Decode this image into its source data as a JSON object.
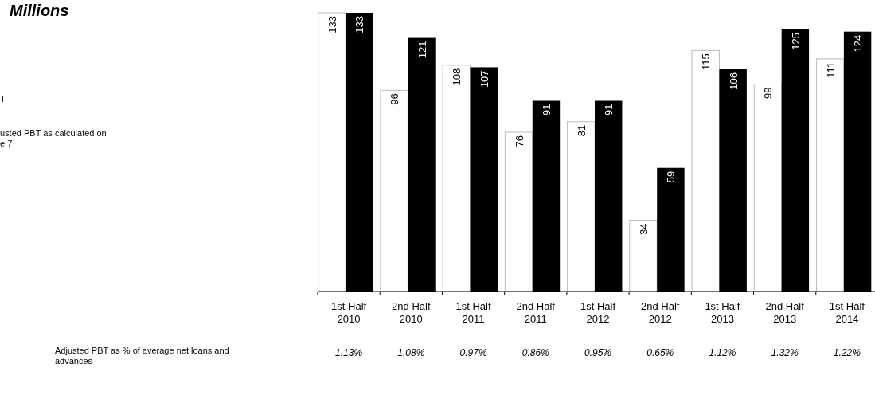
{
  "chart_data": {
    "type": "bar",
    "title": "Millions",
    "categories": [
      "1st Half 2010",
      "2nd Half 2010",
      "1st Half 2011",
      "2nd Half 2011",
      "1st Half 2012",
      "2nd Half 2012",
      "1st Half 2013",
      "2nd Half 2013",
      "1st Half 2014"
    ],
    "series": [
      {
        "color": "#ffffff",
        "values": [
          133,
          96,
          108,
          76,
          81,
          34,
          115,
          99,
          111
        ]
      },
      {
        "color": "#000000",
        "values": [
          133,
          121,
          107,
          91,
          91,
          59,
          106,
          125,
          124
        ]
      }
    ],
    "data_labels": true,
    "annotations": [
      "T",
      "usted PBT as calculated on\ne 7",
      "Adjusted PBT as % of average net loans and\nadvances",
      "1.13%",
      "1.08%",
      "0.97%",
      "0.86%",
      "0.95%",
      "0.65%",
      "1.12%",
      "1.32%",
      "1.22%"
    ]
  }
}
